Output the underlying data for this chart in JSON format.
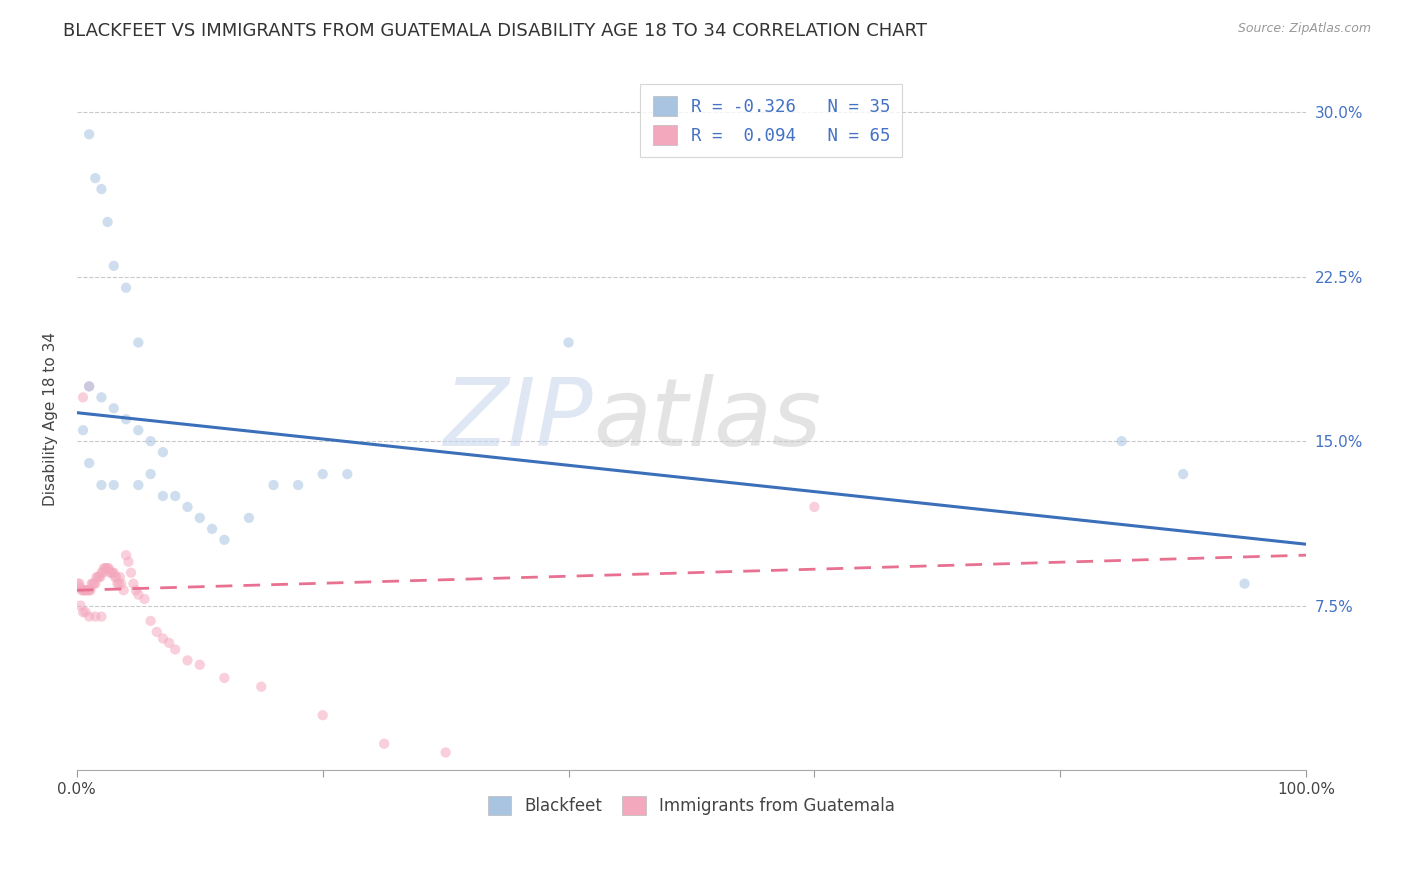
{
  "title": "BLACKFEET VS IMMIGRANTS FROM GUATEMALA DISABILITY AGE 18 TO 34 CORRELATION CHART",
  "source": "Source: ZipAtlas.com",
  "ylabel": "Disability Age 18 to 34",
  "ytick_vals": [
    0.0,
    0.075,
    0.15,
    0.225,
    0.3
  ],
  "ytick_labels": [
    "",
    "7.5%",
    "15.0%",
    "22.5%",
    "30.0%"
  ],
  "xtick_vals": [
    0.0,
    0.2,
    0.4,
    0.6,
    0.8,
    1.0
  ],
  "xtick_labels": [
    "0.0%",
    "",
    "",
    "",
    "",
    "100.0%"
  ],
  "legend_r_blue": "-0.326",
  "legend_n_blue": "35",
  "legend_r_pink": "0.094",
  "legend_n_pink": "65",
  "watermark_zip": "ZIP",
  "watermark_atlas": "atlas",
  "blue_scatter_x": [
    0.01,
    0.015,
    0.02,
    0.025,
    0.03,
    0.04,
    0.05,
    0.01,
    0.02,
    0.03,
    0.04,
    0.05,
    0.06,
    0.07,
    0.005,
    0.01,
    0.02,
    0.03,
    0.05,
    0.06,
    0.07,
    0.08,
    0.09,
    0.1,
    0.11,
    0.12,
    0.14,
    0.16,
    0.18,
    0.2,
    0.22,
    0.85,
    0.9,
    0.95,
    0.4
  ],
  "blue_scatter_y": [
    0.29,
    0.27,
    0.265,
    0.25,
    0.23,
    0.22,
    0.195,
    0.175,
    0.17,
    0.165,
    0.16,
    0.155,
    0.15,
    0.145,
    0.155,
    0.14,
    0.13,
    0.13,
    0.13,
    0.135,
    0.125,
    0.125,
    0.12,
    0.115,
    0.11,
    0.105,
    0.115,
    0.13,
    0.13,
    0.135,
    0.135,
    0.15,
    0.135,
    0.085,
    0.195
  ],
  "pink_scatter_x": [
    0.001,
    0.002,
    0.003,
    0.004,
    0.005,
    0.005,
    0.006,
    0.007,
    0.008,
    0.009,
    0.01,
    0.01,
    0.011,
    0.012,
    0.013,
    0.014,
    0.015,
    0.016,
    0.017,
    0.018,
    0.019,
    0.02,
    0.021,
    0.022,
    0.023,
    0.024,
    0.025,
    0.026,
    0.027,
    0.028,
    0.029,
    0.03,
    0.031,
    0.032,
    0.033,
    0.034,
    0.035,
    0.036,
    0.038,
    0.04,
    0.042,
    0.044,
    0.046,
    0.048,
    0.05,
    0.055,
    0.06,
    0.065,
    0.07,
    0.075,
    0.08,
    0.09,
    0.1,
    0.12,
    0.15,
    0.2,
    0.25,
    0.3,
    0.6,
    0.003,
    0.005,
    0.007,
    0.01,
    0.015,
    0.02
  ],
  "pink_scatter_y": [
    0.085,
    0.085,
    0.083,
    0.082,
    0.082,
    0.17,
    0.082,
    0.082,
    0.082,
    0.082,
    0.082,
    0.175,
    0.082,
    0.085,
    0.085,
    0.085,
    0.085,
    0.088,
    0.088,
    0.088,
    0.088,
    0.09,
    0.09,
    0.092,
    0.092,
    0.092,
    0.092,
    0.092,
    0.09,
    0.09,
    0.09,
    0.09,
    0.088,
    0.088,
    0.085,
    0.085,
    0.088,
    0.085,
    0.082,
    0.098,
    0.095,
    0.09,
    0.085,
    0.082,
    0.08,
    0.078,
    0.068,
    0.063,
    0.06,
    0.058,
    0.055,
    0.05,
    0.048,
    0.042,
    0.038,
    0.025,
    0.012,
    0.008,
    0.12,
    0.075,
    0.072,
    0.072,
    0.07,
    0.07,
    0.07
  ],
  "blue_color": "#a8c4e0",
  "pink_color": "#f4a8be",
  "blue_line_color": "#3b6fba",
  "pink_line_color": "#e87090",
  "blue_line_y_start": 0.163,
  "blue_line_y_end": 0.103,
  "pink_line_y_start": 0.082,
  "pink_line_y_end": 0.098,
  "xlim": [
    0.0,
    1.0
  ],
  "ylim": [
    0.0,
    0.32
  ],
  "background_color": "#ffffff",
  "grid_color": "#bbbbbb",
  "title_fontsize": 13,
  "axis_label_fontsize": 11,
  "tick_color": "#4472c4",
  "tick_fontsize": 11,
  "scatter_size": 55,
  "scatter_alpha": 0.55
}
